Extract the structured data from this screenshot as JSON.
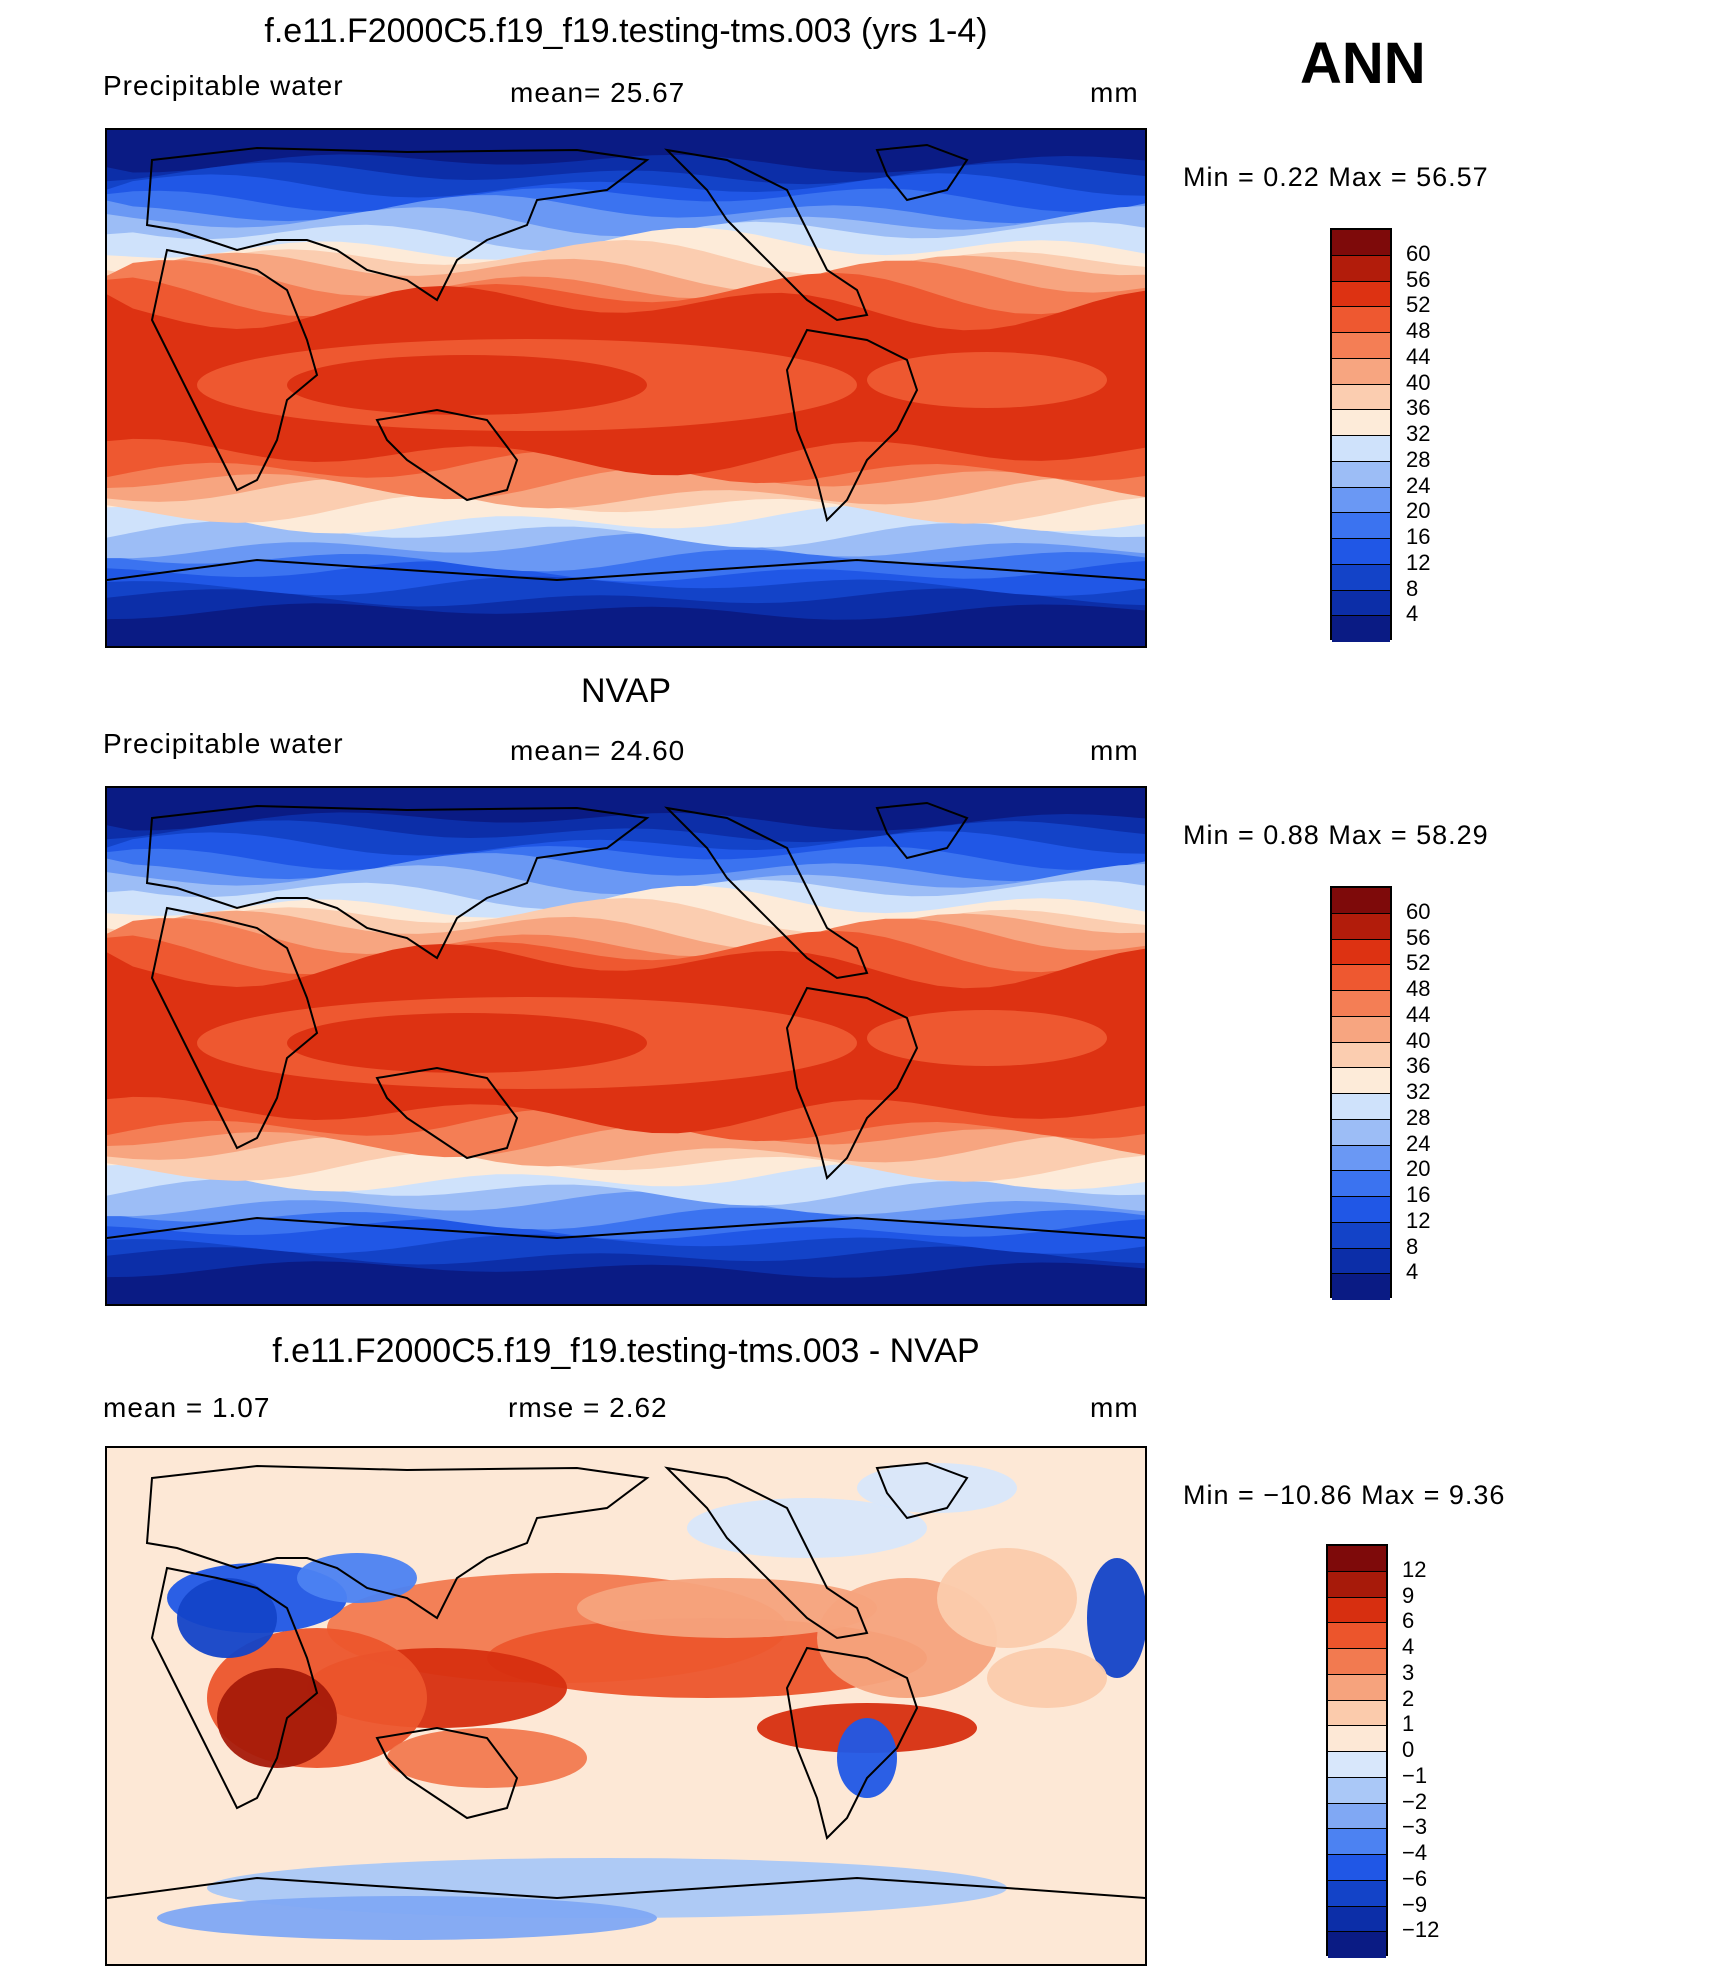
{
  "season": "ANN",
  "palette_abs": [
    "#0a1b84",
    "#0c2ea8",
    "#1343c8",
    "#2057e6",
    "#3b73f0",
    "#6a98f4",
    "#9cbdf6",
    "#cfe2fb",
    "#fdebd9",
    "#fbcdb0",
    "#f7a580",
    "#f47e55",
    "#ee5830",
    "#dd3212",
    "#b21c0b",
    "#7e0a0a"
  ],
  "palette_diff": [
    "#0a1b84",
    "#0c2ea8",
    "#1343c8",
    "#2057e6",
    "#4c82f2",
    "#80a8f4",
    "#aac8f7",
    "#d8e7fb",
    "#fde8d6",
    "#fbcbac",
    "#f6a37d",
    "#f27a50",
    "#ec552c",
    "#d72f10",
    "#a71a0a",
    "#7e0a0a"
  ],
  "panels": [
    {
      "title": "f.e11.F2000C5.f19_f19.testing-tms.003 (yrs 1-4)",
      "left_label": "Precipitable  water",
      "mid_label": "mean=   25.67",
      "units": "mm",
      "minmax": "Min  =     0.22  Max  =    56.57",
      "colorbar_labels": [
        "60",
        "56",
        "52",
        "48",
        "44",
        "40",
        "36",
        "32",
        "28",
        "24",
        "20",
        "16",
        "12",
        "8",
        "4"
      ]
    },
    {
      "title": "NVAP",
      "left_label": "Precipitable  water",
      "mid_label": "mean=   24.60",
      "units": "mm",
      "minmax": "Min  =     0.88  Max  =    58.29",
      "colorbar_labels": [
        "60",
        "56",
        "52",
        "48",
        "44",
        "40",
        "36",
        "32",
        "28",
        "24",
        "20",
        "16",
        "12",
        "8",
        "4"
      ]
    },
    {
      "title": "f.e11.F2000C5.f19_f19.testing-tms.003 - NVAP",
      "left_label": "mean  =     1.07",
      "mid_label": "rmse  =     2.62",
      "units": "mm",
      "minmax": "Min  = −10.86  Max  =     9.36",
      "colorbar_labels": [
        "12",
        "9",
        "6",
        "4",
        "3",
        "2",
        "1",
        "0",
        "−1",
        "−2",
        "−3",
        "−4",
        "−6",
        "−9",
        "−12"
      ]
    }
  ]
}
